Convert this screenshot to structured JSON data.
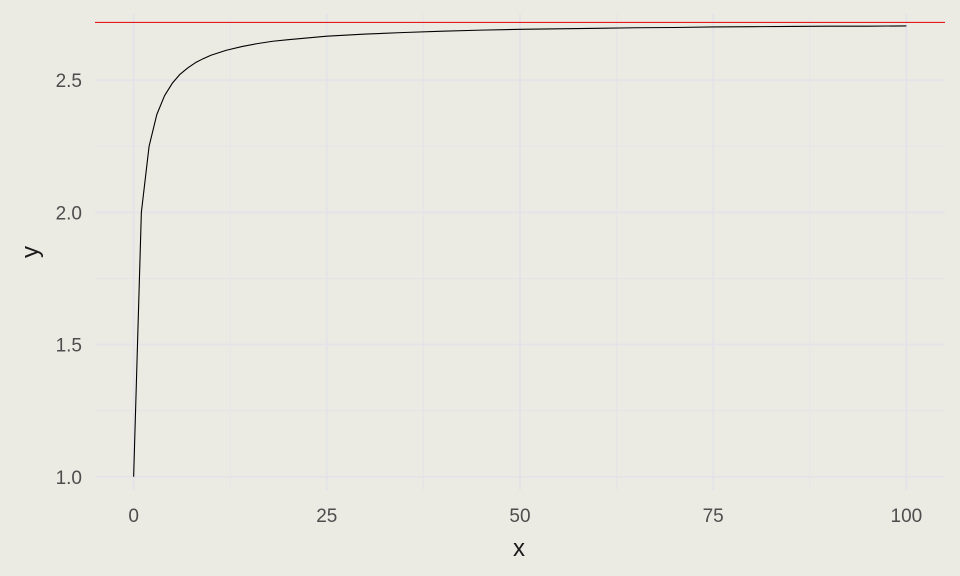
{
  "chart_data": {
    "type": "line",
    "title": "",
    "xlabel": "x",
    "ylabel": "y",
    "xlim": [
      -5,
      105
    ],
    "ylim": [
      0.95,
      2.75
    ],
    "x_ticks": [
      0,
      25,
      50,
      75,
      100
    ],
    "x_tick_labels": [
      "0",
      "25",
      "50",
      "75",
      "100"
    ],
    "y_ticks": [
      1.0,
      1.5,
      2.0,
      2.5
    ],
    "y_tick_labels": [
      "1.0",
      "1.5",
      "2.0",
      "2.5"
    ],
    "grid": true,
    "legend": "none",
    "series": [
      {
        "color": "#000000",
        "x": [
          0,
          1,
          2,
          3,
          4,
          5,
          6,
          7,
          8,
          9,
          10,
          12,
          14,
          16,
          18,
          20,
          25,
          30,
          35,
          40,
          45,
          50,
          55,
          60,
          65,
          70,
          75,
          80,
          85,
          90,
          95,
          100
        ],
        "y": [
          1.0,
          2.0,
          2.25,
          2.37,
          2.441,
          2.488,
          2.522,
          2.546,
          2.566,
          2.581,
          2.594,
          2.613,
          2.627,
          2.638,
          2.647,
          2.653,
          2.666,
          2.674,
          2.68,
          2.685,
          2.689,
          2.692,
          2.694,
          2.696,
          2.698,
          2.699,
          2.701,
          2.702,
          2.703,
          2.704,
          2.704,
          2.705
        ]
      }
    ],
    "hlines": [
      {
        "y": 2.718,
        "color": "#e31a1c"
      }
    ]
  },
  "colors": {
    "background": "#ebebe4",
    "grid": "#e4e4e8",
    "line": "#000000",
    "reference_line": "#e31a1c"
  }
}
